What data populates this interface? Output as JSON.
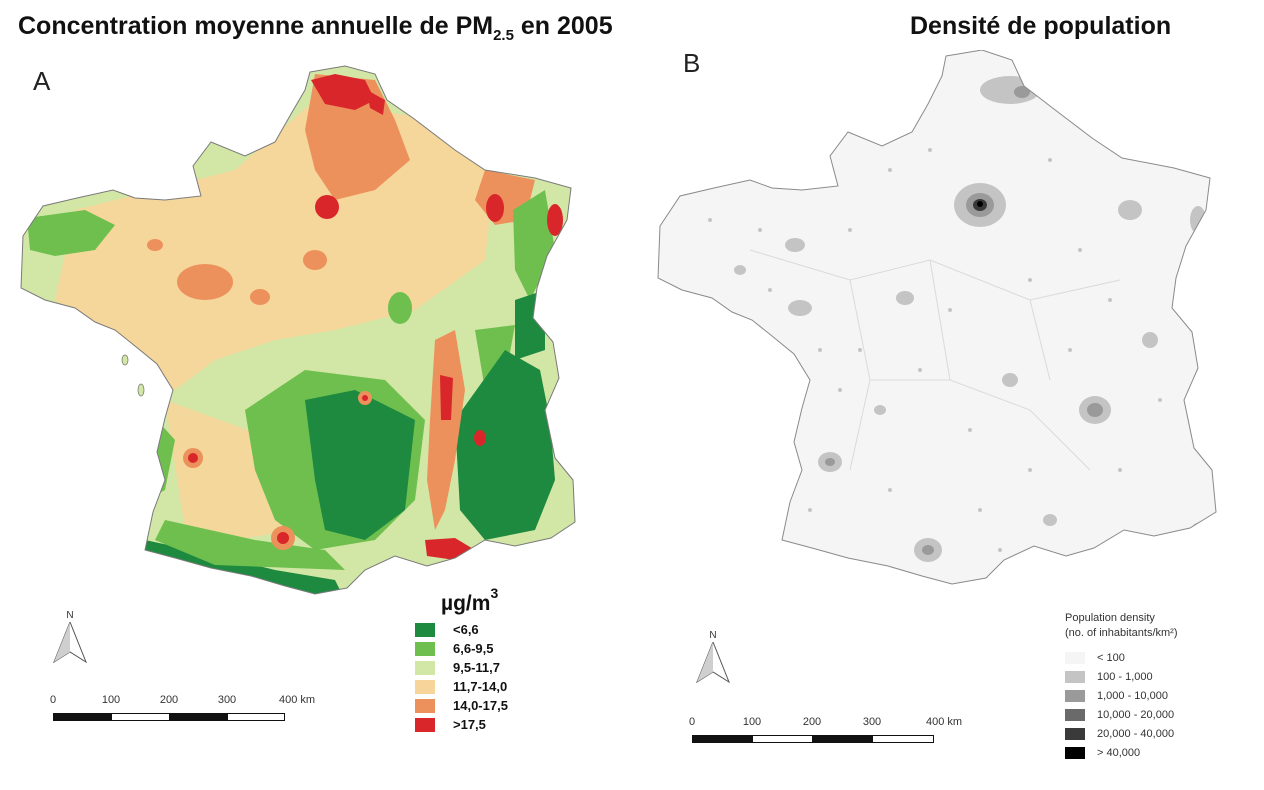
{
  "panel_a": {
    "title_main": "Concentration moyenne annuelle de PM",
    "title_sub": "2.5",
    "title_tail": " en 2005",
    "letter": "A",
    "legend": {
      "unit": "µg/m",
      "unit_sup": "3",
      "items": [
        {
          "label": "<6,6",
          "color": "#1e8a3f"
        },
        {
          "label": "6,6-9,5",
          "color": "#6fbf4e"
        },
        {
          "label": "9,5-11,7",
          "color": "#d2e7a6"
        },
        {
          "label": "11,7-14,0",
          "color": "#f7d59a"
        },
        {
          "label": "14,0-17,5",
          "color": "#ed915c"
        },
        {
          "label": ">17,5",
          "color": "#d9262a"
        }
      ]
    },
    "north_label": "N",
    "scale": {
      "ticks": [
        "0",
        "100",
        "200",
        "300",
        "400 km"
      ]
    }
  },
  "panel_b": {
    "title": "Densité de population",
    "letter": "B",
    "legend": {
      "title_line1": "Population density",
      "title_line2": "(no. of inhabitants/km²)",
      "items": [
        {
          "label": "< 100",
          "color": "#f5f5f5"
        },
        {
          "label": "100 - 1,000",
          "color": "#c4c4c4"
        },
        {
          "label": "1,000 - 10,000",
          "color": "#9a9a9a"
        },
        {
          "label": "10,000 - 20,000",
          "color": "#6a6a6a"
        },
        {
          "label": "20,000 - 40,000",
          "color": "#3a3a3a"
        },
        {
          "label": "> 40,000",
          "color": "#000000"
        }
      ]
    },
    "north_label": "N",
    "scale": {
      "ticks": [
        "0",
        "100",
        "200",
        "300",
        "400 km"
      ]
    }
  }
}
